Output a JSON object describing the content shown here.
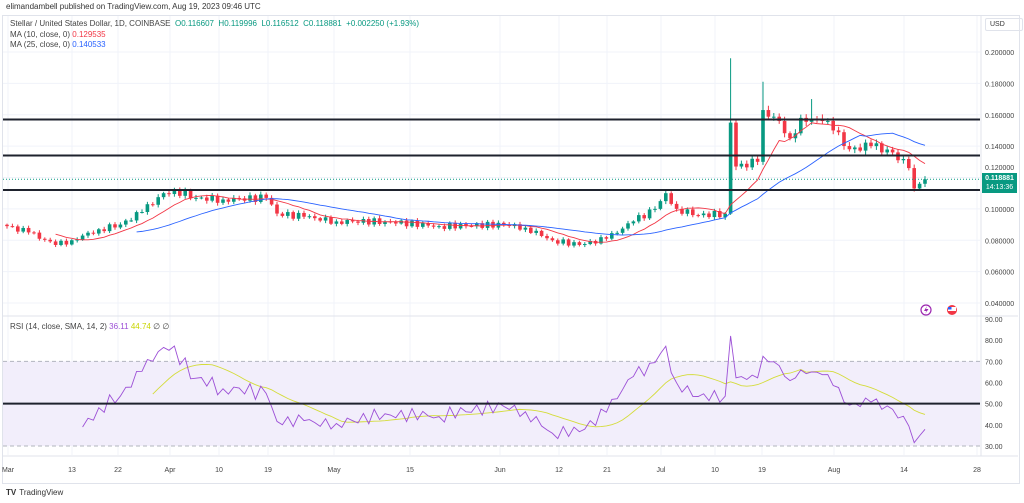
{
  "header": {
    "published": "elimandambell published on TradingView.com, Aug 19, 2023 09:46 UTC"
  },
  "legend": {
    "symbol": "Stellar / United States Dollar, 1D, COINBASE",
    "o": "O0.116607",
    "h": "H0.119996",
    "l": "L0.116512",
    "c": "C0.118881",
    "change": "+0.002250 (+1.93%)",
    "ma10_label": "MA (10, close, 0)",
    "ma10_value": "0.129535",
    "ma25_label": "MA (25, close, 0)",
    "ma25_value": "0.140533",
    "rsi_label": "RSI (14, close, SMA, 14, 2)",
    "rsi_value": "36.11",
    "rsi_sma_value": "44.74",
    "rsi_extra1": "∅",
    "rsi_extra2": "∅"
  },
  "currency": "USD",
  "price_label": {
    "value": "0.118881",
    "countdown": "14:13:36"
  },
  "branding": "TradingView",
  "icons": [
    "lightning-icon",
    "us-flag-icon"
  ],
  "colors": {
    "up": "#089981",
    "down": "#f23645",
    "ma10": "#f23645",
    "ma25": "#2962ff",
    "rsi": "#9c4fd6",
    "rsi_sma": "#d4dc3a",
    "levels": "#1e222d"
  },
  "chart_data": {
    "type": "candlestick",
    "price_axis": {
      "ticks": [
        "0.200000",
        "0.180000",
        "0.160000",
        "0.140000",
        "0.120000",
        "0.100000",
        "0.080000",
        "0.060000",
        "0.040000"
      ],
      "range": [
        0.035,
        0.21
      ]
    },
    "time_axis": {
      "ticks": [
        "Mar",
        "13",
        "22",
        "Apr",
        "10",
        "19",
        "May",
        "15",
        "Jun",
        "12",
        "21",
        "Jul",
        "10",
        "19",
        "Aug",
        "14",
        "28"
      ]
    },
    "rsi_axis": {
      "ticks": [
        "90.00",
        "80.00",
        "70.00",
        "60.00",
        "50.00",
        "40.00",
        "30.00"
      ],
      "band": [
        30,
        70
      ]
    },
    "horizontal_levels": [
      0.157,
      0.134,
      0.112
    ],
    "rsi_level": 50,
    "close_keyframes": {
      "dates": [
        "2023-03-01",
        "2023-03-05",
        "2023-03-10",
        "2023-03-13",
        "2023-03-18",
        "2023-03-22",
        "2023-03-26",
        "2023-03-30",
        "2023-04-01",
        "2023-04-05",
        "2023-04-10",
        "2023-04-18",
        "2023-04-20",
        "2023-04-25",
        "2023-05-01",
        "2023-05-10",
        "2023-05-20",
        "2023-06-01",
        "2023-06-05",
        "2023-06-10",
        "2023-06-15",
        "2023-06-20",
        "2023-06-25",
        "2023-06-29",
        "2023-07-01",
        "2023-07-03",
        "2023-07-07",
        "2023-07-12",
        "2023-07-13",
        "2023-07-14",
        "2023-07-18",
        "2023-07-19",
        "2023-07-22",
        "2023-07-24",
        "2023-07-26",
        "2023-07-30",
        "2023-08-01",
        "2023-08-04",
        "2023-08-08",
        "2023-08-12",
        "2023-08-15",
        "2023-08-16",
        "2023-08-17",
        "2023-08-18"
      ],
      "close": [
        0.089,
        0.085,
        0.077,
        0.08,
        0.087,
        0.09,
        0.098,
        0.11,
        0.112,
        0.107,
        0.106,
        0.107,
        0.097,
        0.095,
        0.092,
        0.092,
        0.089,
        0.09,
        0.088,
        0.08,
        0.077,
        0.081,
        0.092,
        0.1,
        0.11,
        0.1,
        0.096,
        0.097,
        0.155,
        0.127,
        0.13,
        0.163,
        0.156,
        0.145,
        0.158,
        0.156,
        0.15,
        0.138,
        0.14,
        0.136,
        0.126,
        0.113,
        0.116,
        0.118881
      ]
    },
    "notable_highs": {
      "2023-07-13": 0.196,
      "2023-07-19": 0.181,
      "2023-07-28": 0.17
    },
    "rsi_last": 36.11,
    "rsi_sma_last": 44.74
  }
}
